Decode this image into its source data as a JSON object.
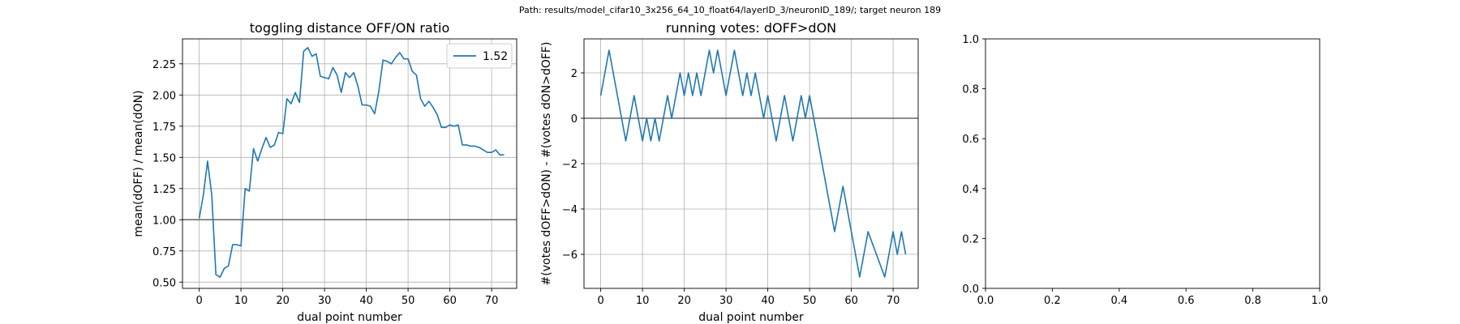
{
  "suptitle": "Path: results/model_cifar10_3x256_64_10_float64/layerID_3/neuronID_189/; target neuron 189",
  "chart_data": [
    {
      "type": "line",
      "title": "toggling distance OFF/ON ratio",
      "xlabel": "dual point number",
      "ylabel": "mean(dOFF) / mean(dON)",
      "xlim": [
        -4,
        76
      ],
      "ylim": [
        0.45,
        2.45
      ],
      "xticks": [
        0,
        10,
        20,
        30,
        40,
        50,
        60,
        70
      ],
      "yticks": [
        0.5,
        0.75,
        1.0,
        1.25,
        1.5,
        1.75,
        2.0,
        2.25
      ],
      "ytick_labels": [
        "0.50",
        "0.75",
        "1.00",
        "1.25",
        "1.50",
        "1.75",
        "2.00",
        "2.25"
      ],
      "grid": true,
      "hline": 1.0,
      "legend": {
        "location": "upper right",
        "entries": [
          "1.52"
        ]
      },
      "series": [
        {
          "name": "1.52",
          "color": "#1f77b4",
          "x": [
            0,
            1,
            2,
            3,
            4,
            5,
            6,
            7,
            8,
            9,
            10,
            11,
            12,
            13,
            14,
            15,
            16,
            17,
            18,
            19,
            20,
            21,
            22,
            23,
            24,
            25,
            26,
            27,
            28,
            29,
            30,
            31,
            32,
            33,
            34,
            35,
            36,
            37,
            38,
            39,
            40,
            41,
            42,
            43,
            44,
            45,
            46,
            47,
            48,
            49,
            50,
            51,
            52,
            53,
            54,
            55,
            56,
            57,
            58,
            59,
            60,
            61,
            62,
            63,
            64,
            65,
            66,
            67,
            68,
            69,
            70,
            71,
            72,
            73
          ],
          "y": [
            1.01,
            1.2,
            1.47,
            1.2,
            0.56,
            0.54,
            0.61,
            0.63,
            0.8,
            0.8,
            0.79,
            1.25,
            1.23,
            1.57,
            1.47,
            1.57,
            1.66,
            1.58,
            1.6,
            1.7,
            1.69,
            1.97,
            1.93,
            2.02,
            1.94,
            2.35,
            2.38,
            2.31,
            2.33,
            2.15,
            2.14,
            2.13,
            2.22,
            2.16,
            2.02,
            2.18,
            2.14,
            2.18,
            2.07,
            1.92,
            1.92,
            1.91,
            1.85,
            2.03,
            2.28,
            2.27,
            2.25,
            2.3,
            2.34,
            2.29,
            2.29,
            2.19,
            2.16,
            1.97,
            1.91,
            1.95,
            1.9,
            1.84,
            1.74,
            1.74,
            1.76,
            1.75,
            1.76,
            1.6,
            1.6,
            1.59,
            1.59,
            1.58,
            1.56,
            1.54,
            1.54,
            1.56,
            1.52,
            1.52
          ]
        }
      ]
    },
    {
      "type": "line",
      "title": "running votes: dOFF>dON",
      "xlabel": "dual point number",
      "ylabel": "#(votes dOFF>dON) - #(votes dON>dOFF)",
      "xlim": [
        -4,
        76
      ],
      "ylim": [
        -7.5,
        3.5
      ],
      "xticks": [
        0,
        10,
        20,
        30,
        40,
        50,
        60,
        70
      ],
      "yticks": [
        -6,
        -4,
        -2,
        0,
        2
      ],
      "ytick_labels": [
        "−6",
        "−4",
        "−2",
        "0",
        "2"
      ],
      "grid": true,
      "hline": 0,
      "series": [
        {
          "color": "#1f77b4",
          "x": [
            0,
            2,
            4,
            6,
            8,
            10,
            11,
            12,
            13,
            14,
            15,
            16,
            17,
            18,
            19,
            20,
            21,
            22,
            23,
            24,
            25,
            26,
            27,
            28,
            29,
            30,
            32,
            34,
            35,
            36,
            37,
            38,
            39,
            40,
            41,
            42,
            43,
            44,
            45,
            46,
            47,
            48,
            49,
            50,
            52,
            54,
            56,
            58,
            60,
            62,
            64,
            66,
            68,
            70,
            71,
            72,
            73
          ],
          "y": [
            1,
            3,
            1,
            -1,
            1,
            -1,
            0,
            -1,
            0,
            -1,
            0,
            1,
            0,
            1,
            2,
            1,
            2,
            1,
            2,
            1,
            2,
            3,
            2,
            3,
            2,
            1,
            3,
            1,
            2,
            1,
            2,
            1,
            0,
            1,
            0,
            -1,
            0,
            1,
            0,
            -1,
            0,
            1,
            0,
            1,
            -1,
            -3,
            -5,
            -3,
            -5,
            -7,
            -5,
            -6,
            -7,
            -5,
            -6,
            -5,
            -6
          ]
        }
      ]
    },
    {
      "type": "line",
      "title": "",
      "xlabel": "",
      "ylabel": "",
      "xlim": [
        0,
        1
      ],
      "ylim": [
        0,
        1
      ],
      "xticks": [
        0,
        0.2,
        0.4,
        0.6,
        0.8,
        1.0
      ],
      "xtick_labels": [
        "0.0",
        "0.2",
        "0.4",
        "0.6",
        "0.8",
        "1.0"
      ],
      "yticks": [
        0,
        0.2,
        0.4,
        0.6,
        0.8,
        1.0
      ],
      "ytick_labels": [
        "0.0",
        "0.2",
        "0.4",
        "0.6",
        "0.8",
        "1.0"
      ],
      "grid": false,
      "series": []
    }
  ]
}
